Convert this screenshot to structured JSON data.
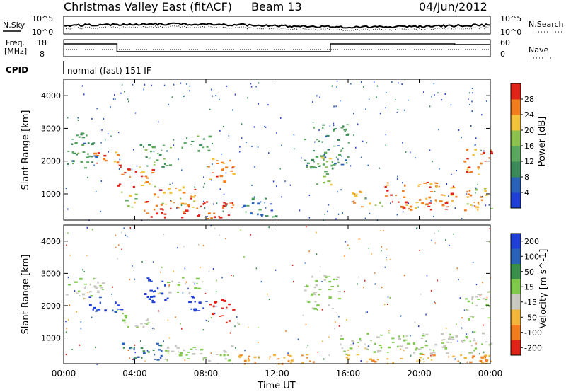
{
  "header": {
    "title": "Christmas Valley East (fitACF)",
    "beam": "Beam 13",
    "date": "04/Jun/2012"
  },
  "side_labels": {
    "nsky": "N.Sky",
    "nsearch": "N.Search",
    "freq_line1": "Freq.",
    "freq_line2": "[MHz]",
    "nave": "Nave",
    "cpid": "CPID",
    "cpid_value": "normal (fast) 151 IF"
  },
  "noise_panel": {
    "left_ticks": [
      "10^5",
      "10^0"
    ],
    "right_ticks": [
      "10^5",
      "10^0"
    ]
  },
  "freq_panel": {
    "left_ticks": [
      "18",
      "8"
    ],
    "right_ticks": [
      "60",
      "0"
    ]
  },
  "colors": {
    "power_scale": [
      "#1f3fd6",
      "#2a62b8",
      "#3c8a5a",
      "#5aa860",
      "#8cc04c",
      "#f2c23a",
      "#f07d1e",
      "#e2231a"
    ],
    "velocity_scale": [
      "#1f3fd6",
      "#2a62b8",
      "#3a8f4a",
      "#7ec94a",
      "#c8c8c0",
      "#f2b43a",
      "#f07d1e",
      "#e2231a"
    ]
  },
  "chart_data": [
    {
      "type": "heatmap",
      "title": "Power",
      "xlabel": "",
      "ylabel": "Slant Range [km]",
      "x_ticks": [
        "00:00",
        "04:00",
        "08:00",
        "12:00",
        "16:00",
        "20:00",
        "00:00"
      ],
      "y_ticks": [
        "1000",
        "2000",
        "3000",
        "4000"
      ],
      "ylim": [
        200,
        4500
      ],
      "colorbar_label": "Power [dB]",
      "colorbar_ticks": [
        "4",
        "8",
        "12",
        "16",
        "20",
        "24",
        "28"
      ],
      "colorbar_range": [
        0,
        32
      ],
      "blobs": [
        {
          "t0": 0.0,
          "t1": 1.9,
          "r0": 1800,
          "r1": 2900,
          "v": 12
        },
        {
          "t0": 1.4,
          "t1": 3.0,
          "r0": 1900,
          "r1": 2300,
          "v": 28
        },
        {
          "t0": 3.0,
          "t1": 5.0,
          "r0": 1200,
          "r1": 1900,
          "v": 26
        },
        {
          "t0": 4.2,
          "t1": 6.0,
          "r0": 1800,
          "r1": 2600,
          "v": 14
        },
        {
          "t0": 3.2,
          "t1": 4.2,
          "r0": 600,
          "r1": 1100,
          "v": 20
        },
        {
          "t0": 4.5,
          "t1": 9.5,
          "r0": 250,
          "r1": 800,
          "v": 28
        },
        {
          "t0": 5.0,
          "t1": 7.5,
          "r0": 600,
          "r1": 1300,
          "v": 24
        },
        {
          "t0": 6.5,
          "t1": 8.2,
          "r0": 2300,
          "r1": 2800,
          "v": 14
        },
        {
          "t0": 8.0,
          "t1": 9.6,
          "r0": 1400,
          "r1": 2100,
          "v": 26
        },
        {
          "t0": 10.0,
          "t1": 12.0,
          "r0": 300,
          "r1": 900,
          "v": 8
        },
        {
          "t0": 13.5,
          "t1": 16.0,
          "r0": 1800,
          "r1": 3200,
          "v": 10
        },
        {
          "t0": 14.2,
          "t1": 15.0,
          "r0": 1300,
          "r1": 2300,
          "v": 18
        },
        {
          "t0": 16.0,
          "t1": 18.0,
          "r0": 600,
          "r1": 1100,
          "v": 22
        },
        {
          "t0": 18.0,
          "t1": 22.0,
          "r0": 500,
          "r1": 1400,
          "v": 26
        },
        {
          "t0": 22.0,
          "t1": 24.0,
          "r0": 500,
          "r1": 1200,
          "v": 24
        },
        {
          "t0": 22.5,
          "t1": 24.0,
          "r0": 1600,
          "r1": 2500,
          "v": 26
        }
      ]
    },
    {
      "type": "heatmap",
      "title": "Velocity",
      "xlabel": "Time UT",
      "ylabel": "Slant Range [km]",
      "x_ticks": [
        "00:00",
        "04:00",
        "08:00",
        "12:00",
        "16:00",
        "20:00",
        "00:00"
      ],
      "y_ticks": [
        "1000",
        "2000",
        "3000",
        "4000"
      ],
      "ylim": [
        200,
        4500
      ],
      "colorbar_label": "Velocity [m s^-1]",
      "colorbar_ticks": [
        "200",
        "100",
        "50",
        "15",
        "-15",
        "-50",
        "-100",
        "-200"
      ],
      "colorbar_range": [
        -250,
        250
      ],
      "blobs": [
        {
          "t0": 0.0,
          "t1": 2.2,
          "r0": 2200,
          "r1": 2900,
          "v": 0
        },
        {
          "t0": 1.0,
          "t1": 3.2,
          "r0": 1800,
          "r1": 2300,
          "v": 170
        },
        {
          "t0": 3.0,
          "t1": 4.8,
          "r0": 1300,
          "r1": 1800,
          "v": 0
        },
        {
          "t0": 4.4,
          "t1": 5.8,
          "r0": 2100,
          "r1": 2900,
          "v": 190
        },
        {
          "t0": 5.8,
          "t1": 7.6,
          "r0": 2400,
          "r1": 2900,
          "v": 0
        },
        {
          "t0": 6.8,
          "t1": 8.0,
          "r0": 1800,
          "r1": 2400,
          "v": 200
        },
        {
          "t0": 8.1,
          "t1": 9.5,
          "r0": 1500,
          "r1": 2200,
          "v": -210
        },
        {
          "t0": 3.2,
          "t1": 5.5,
          "r0": 300,
          "r1": 900,
          "v": 80
        },
        {
          "t0": 5.5,
          "t1": 9.5,
          "r0": 300,
          "r1": 800,
          "v": 0
        },
        {
          "t0": 9.5,
          "t1": 16.0,
          "r0": 220,
          "r1": 500,
          "v": -70
        },
        {
          "t0": 13.5,
          "t1": 15.5,
          "r0": 1900,
          "r1": 3000,
          "v": 0
        },
        {
          "t0": 15.5,
          "t1": 24.0,
          "r0": 500,
          "r1": 1200,
          "v": 0
        },
        {
          "t0": 22.5,
          "t1": 24.0,
          "r0": 1600,
          "r1": 2500,
          "v": 0
        },
        {
          "t0": 15.5,
          "t1": 24.0,
          "r0": 220,
          "r1": 500,
          "v": -60
        }
      ]
    }
  ]
}
